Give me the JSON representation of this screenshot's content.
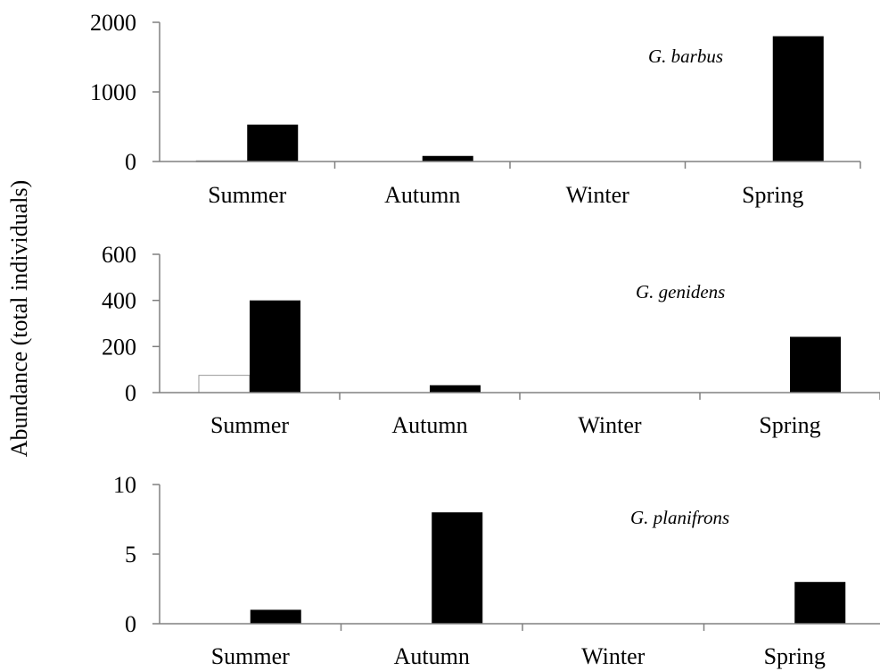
{
  "figure": {
    "ylabel": "Abundance (total individuals)"
  },
  "colors": {
    "series_open": "#ffffff",
    "series_filled": "#000000",
    "axis": "#808080"
  },
  "chart_data": [
    {
      "type": "bar",
      "annotation": "G. barbus",
      "categories": [
        "Summer",
        "Autumn",
        "Winter",
        "Spring"
      ],
      "series": [
        {
          "values": [
            10,
            0,
            0,
            0
          ]
        },
        {
          "values": [
            530,
            80,
            0,
            1800
          ]
        }
      ],
      "ylim": [
        0,
        2000
      ],
      "yticks": [
        "0",
        "1000",
        "2000"
      ],
      "grid": false
    },
    {
      "type": "bar",
      "annotation": "G. genidens",
      "categories": [
        "Summer",
        "Autumn",
        "Winter",
        "Spring"
      ],
      "series": [
        {
          "values": [
            75,
            0,
            0,
            0
          ]
        },
        {
          "values": [
            400,
            32,
            0,
            242
          ]
        }
      ],
      "ylim": [
        0,
        600
      ],
      "yticks": [
        "0",
        "200",
        "400",
        "600"
      ],
      "grid": false
    },
    {
      "type": "bar",
      "annotation": "G. planifrons",
      "categories": [
        "Summer",
        "Autumn",
        "Winter",
        "Spring"
      ],
      "series": [
        {
          "values": [
            0,
            0,
            0,
            0
          ]
        },
        {
          "values": [
            1,
            8,
            0,
            3
          ]
        }
      ],
      "ylim": [
        0,
        10
      ],
      "yticks": [
        "0",
        "5",
        "10"
      ],
      "grid": false
    }
  ]
}
